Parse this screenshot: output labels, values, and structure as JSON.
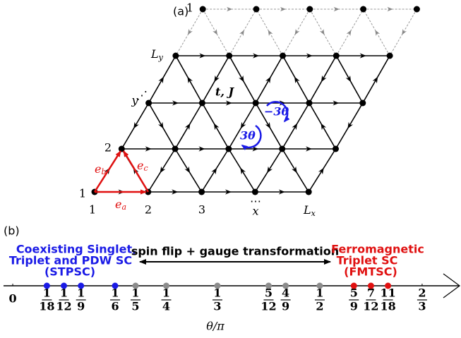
{
  "panel_a": {
    "label": "(a)",
    "origin_label": "1",
    "bottom_labels": [
      "1",
      "2",
      "3",
      "x"
    ],
    "lx": {
      "main": "L",
      "sub": "x"
    },
    "left_labels": [
      "2",
      "y"
    ],
    "ly": {
      "main": "L",
      "sub": "y"
    },
    "top_label": "1",
    "bond_label": "t, J",
    "flux_labels": [
      "−3θ",
      "3θ"
    ],
    "vectors": [
      {
        "main": "e",
        "sub": "a"
      },
      {
        "main": "e",
        "sub": "b"
      },
      {
        "main": "e",
        "sub": "c"
      }
    ]
  },
  "panel_b": {
    "label": "(b)",
    "axis_label": "θ/π",
    "xlim": [
      -0.015,
      0.73
    ],
    "left_region": [
      "Coexisting Singlet,",
      "Triplet and PDW SC",
      "(STPSC)"
    ],
    "middle_text": "spin flip + gauge transformation",
    "right_region": [
      "Ferromagnetic",
      "Triplet SC",
      "(FMTSC)"
    ],
    "zero_tick": {
      "value": 0,
      "label": "0"
    },
    "ticks": [
      {
        "value": 0.05556,
        "numerator": "1",
        "denominator": "18"
      },
      {
        "value": 0.08333,
        "numerator": "1",
        "denominator": "12"
      },
      {
        "value": 0.11111,
        "numerator": "1",
        "denominator": "9"
      },
      {
        "value": 0.16667,
        "numerator": "1",
        "denominator": "6"
      },
      {
        "value": 0.2,
        "numerator": "1",
        "denominator": "5"
      },
      {
        "value": 0.25,
        "numerator": "1",
        "denominator": "4"
      },
      {
        "value": 0.33333,
        "numerator": "1",
        "denominator": "3"
      },
      {
        "value": 0.41667,
        "numerator": "5",
        "denominator": "12"
      },
      {
        "value": 0.44444,
        "numerator": "4",
        "denominator": "9"
      },
      {
        "value": 0.5,
        "numerator": "1",
        "denominator": "2"
      },
      {
        "value": 0.55556,
        "numerator": "5",
        "denominator": "9"
      },
      {
        "value": 0.58333,
        "numerator": "7",
        "denominator": "12"
      },
      {
        "value": 0.61111,
        "numerator": "11",
        "denominator": "18"
      },
      {
        "value": 0.66667,
        "numerator": "2",
        "denominator": "3"
      }
    ],
    "dots": [
      {
        "value": 0.05556,
        "color": "#1a1ae6"
      },
      {
        "value": 0.08333,
        "color": "#1a1ae6"
      },
      {
        "value": 0.11111,
        "color": "#1a1ae6"
      },
      {
        "value": 0.16667,
        "color": "#1a1ae6"
      },
      {
        "value": 0.2,
        "color": "#8c8c8c"
      },
      {
        "value": 0.25,
        "color": "#8c8c8c"
      },
      {
        "value": 0.33333,
        "color": "#8c8c8c"
      },
      {
        "value": 0.41667,
        "color": "#8c8c8c"
      },
      {
        "value": 0.44444,
        "color": "#8c8c8c"
      },
      {
        "value": 0.5,
        "color": "#8c8c8c"
      },
      {
        "value": 0.55556,
        "color": "#e01010"
      },
      {
        "value": 0.58333,
        "color": "#e01010"
      },
      {
        "value": 0.61111,
        "color": "#e01010"
      }
    ]
  }
}
